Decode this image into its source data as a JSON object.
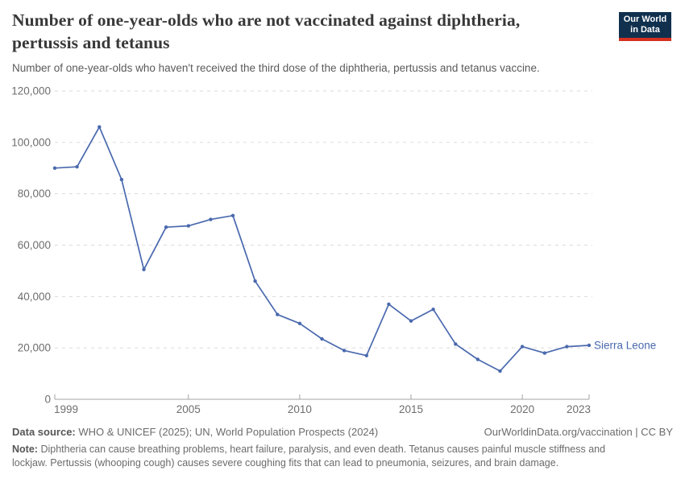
{
  "header": {
    "title": "Number of one-year-olds who are not vaccinated against diphtheria, pertussis and tetanus",
    "subtitle": "Number of one-year-olds who haven't received the third dose of the diphtheria, pertussis and tetanus vaccine.",
    "logo_line1": "Our World",
    "logo_line2": "in Data"
  },
  "colors": {
    "series_line": "#4A69AE",
    "gridline": "#dadada",
    "axis": "#a3a3a3",
    "tick_text": "#6e6e6e",
    "logo_bg": "#10304e",
    "logo_accent": "#d5301f"
  },
  "chart_data": {
    "type": "line",
    "title": "Number of one-year-olds who are not vaccinated against diphtheria, pertussis and tetanus",
    "xlabel": "",
    "ylabel": "",
    "xlim": [
      1999,
      2023
    ],
    "ylim": [
      0,
      120000
    ],
    "grid": "horizontal-dashed",
    "legend_position": "end-of-line",
    "x_ticks": [
      1999,
      2005,
      2010,
      2015,
      2020,
      2023
    ],
    "y_ticks": [
      0,
      20000,
      40000,
      60000,
      80000,
      100000,
      120000
    ],
    "y_tick_labels": [
      "0",
      "20,000",
      "40,000",
      "60,000",
      "80,000",
      "100,000",
      "120,000"
    ],
    "series": [
      {
        "name": "Sierra Leone",
        "color": "#4A69AE",
        "x": [
          1999,
          2000,
          2001,
          2002,
          2003,
          2004,
          2005,
          2006,
          2007,
          2008,
          2009,
          2010,
          2011,
          2012,
          2013,
          2014,
          2015,
          2016,
          2017,
          2018,
          2019,
          2020,
          2021,
          2022,
          2023
        ],
        "values": [
          90000,
          90500,
          106000,
          85500,
          50500,
          67000,
          67500,
          70000,
          71500,
          46000,
          33000,
          29500,
          23500,
          19000,
          17000,
          37000,
          30500,
          35000,
          21500,
          15500,
          11000,
          20500,
          18000,
          20500,
          21000
        ]
      }
    ]
  },
  "footer": {
    "datasource_label": "Data source:",
    "datasource": "WHO & UNICEF (2025); UN, World Population Prospects (2024)",
    "link": "OurWorldinData.org/vaccination | CC BY",
    "note_label": "Note:",
    "note": "Diphtheria can cause breathing problems, heart failure, paralysis, and even death. Tetanus causes painful muscle stiffness and lockjaw. Pertussis (whooping cough) causes severe coughing fits that can lead to pneumonia, seizures, and brain damage."
  }
}
